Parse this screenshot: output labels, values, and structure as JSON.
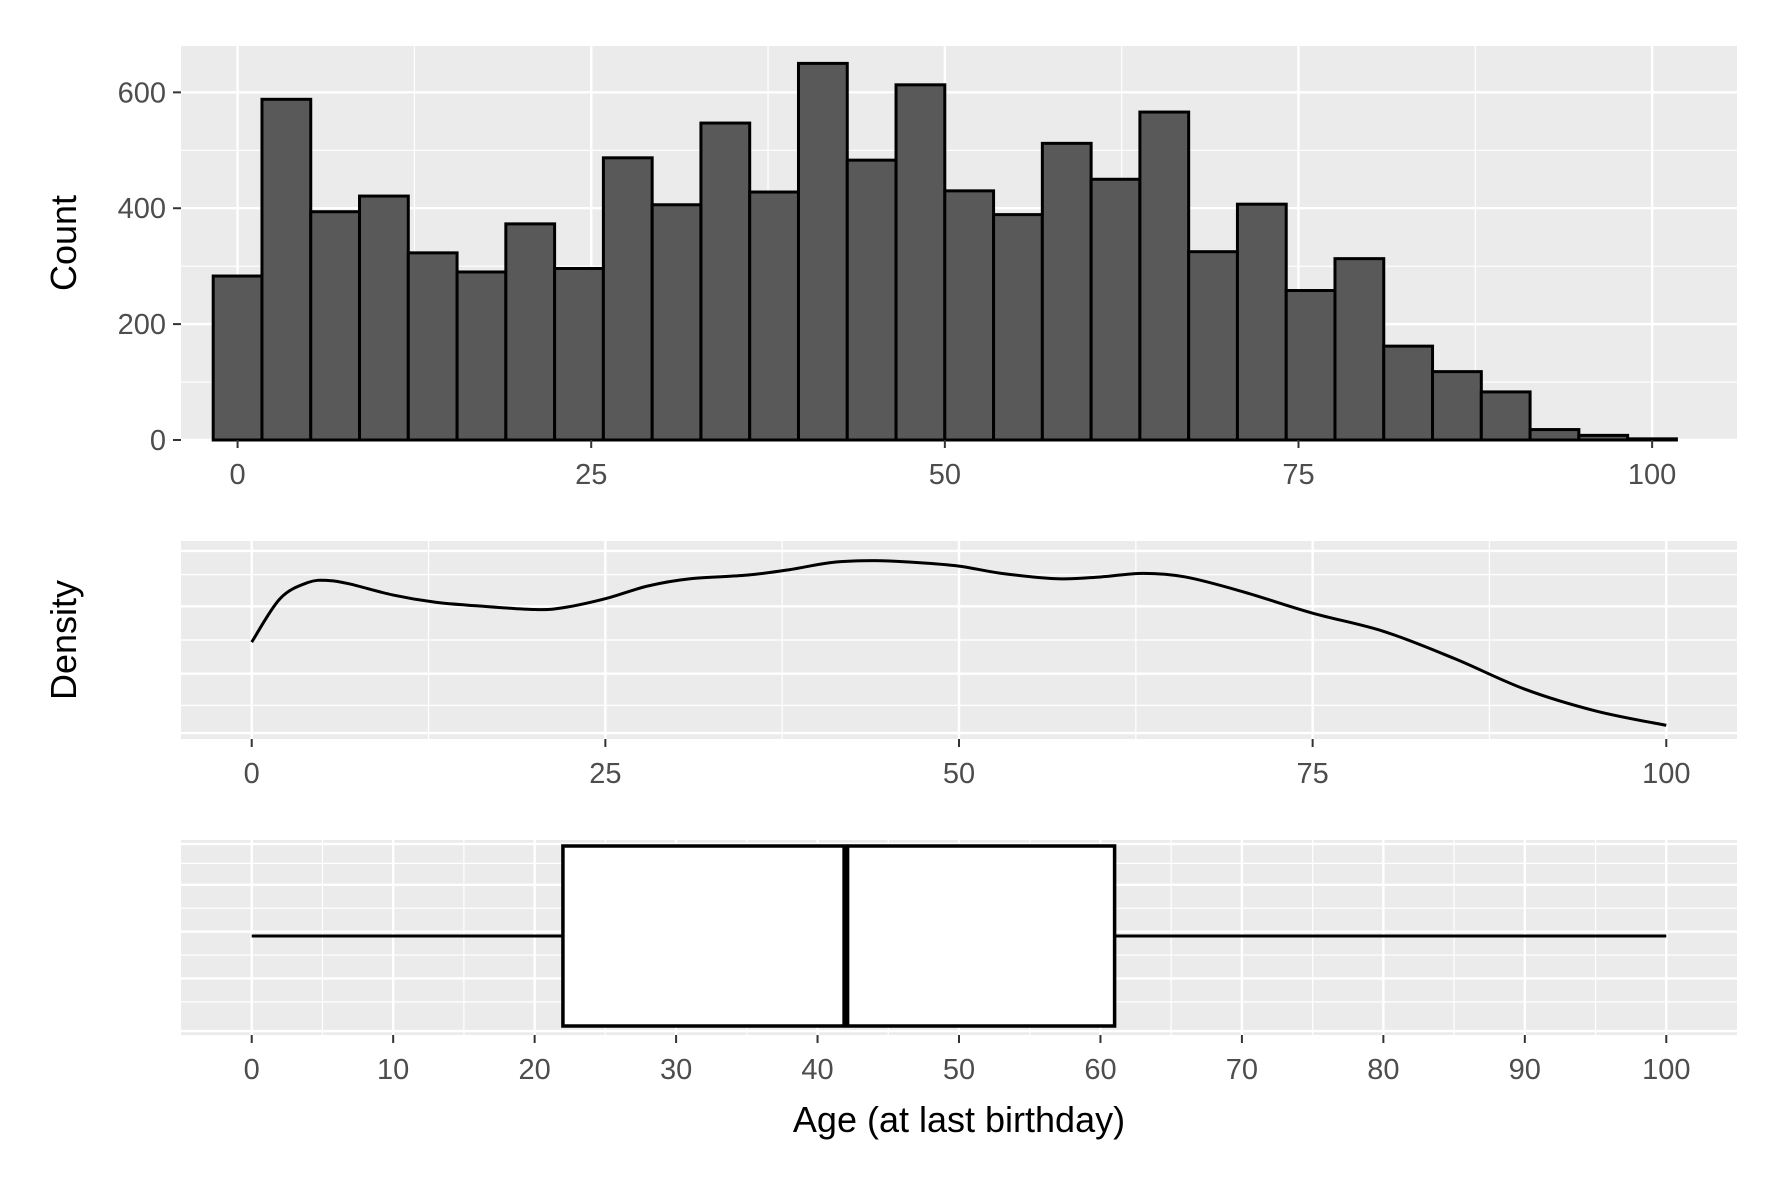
{
  "chart_data": [
    {
      "type": "bar",
      "subtype": "histogram",
      "xlabel": "",
      "ylabel": "Count",
      "xlim": [
        -4,
        106
      ],
      "ylim": [
        0,
        680
      ],
      "x_ticks": [
        0,
        25,
        50,
        75,
        100
      ],
      "y_ticks": [
        0,
        200,
        400,
        600
      ],
      "bin_width": 3.448,
      "bin_start": -1.724,
      "values": [
        283,
        588,
        394,
        421,
        323,
        290,
        373,
        296,
        487,
        406,
        547,
        428,
        650,
        483,
        613,
        430,
        389,
        512,
        450,
        566,
        325,
        407,
        258,
        313,
        162,
        118,
        83,
        18,
        8,
        2
      ],
      "grid": true,
      "colors": {
        "fill": "#595959",
        "stroke": "#000000",
        "panel": "#ebebeb"
      }
    },
    {
      "type": "line",
      "subtype": "density",
      "xlabel": "",
      "ylabel": "Density",
      "xlim": [
        -5,
        105
      ],
      "x_ticks": [
        0,
        25,
        50,
        75,
        100
      ],
      "x": [
        0,
        2,
        4,
        5.5,
        7,
        10,
        13,
        16,
        20,
        22,
        25,
        28,
        31,
        35,
        38,
        41,
        44,
        47,
        50,
        53,
        57,
        60,
        63,
        66,
        70,
        75,
        80,
        85,
        90,
        95,
        100
      ],
      "y": [
        0.48,
        0.72,
        0.81,
        0.82,
        0.8,
        0.74,
        0.7,
        0.68,
        0.66,
        0.67,
        0.72,
        0.79,
        0.83,
        0.85,
        0.88,
        0.92,
        0.93,
        0.92,
        0.9,
        0.86,
        0.83,
        0.84,
        0.86,
        0.84,
        0.76,
        0.64,
        0.54,
        0.39,
        0.22,
        0.1,
        0.02
      ],
      "grid": true,
      "colors": {
        "line": "#000000",
        "panel": "#ebebeb"
      }
    },
    {
      "type": "boxplot",
      "xlabel": "Age (at last birthday)",
      "ylabel": "",
      "xlim": [
        -5,
        105
      ],
      "x_ticks": [
        0,
        10,
        20,
        30,
        40,
        50,
        60,
        70,
        80,
        90,
        100
      ],
      "min": 0,
      "q1": 22,
      "median": 42,
      "q3": 61,
      "max": 100,
      "grid": true,
      "colors": {
        "box": "#ffffff",
        "stroke": "#000000",
        "panel": "#ebebeb"
      }
    }
  ]
}
